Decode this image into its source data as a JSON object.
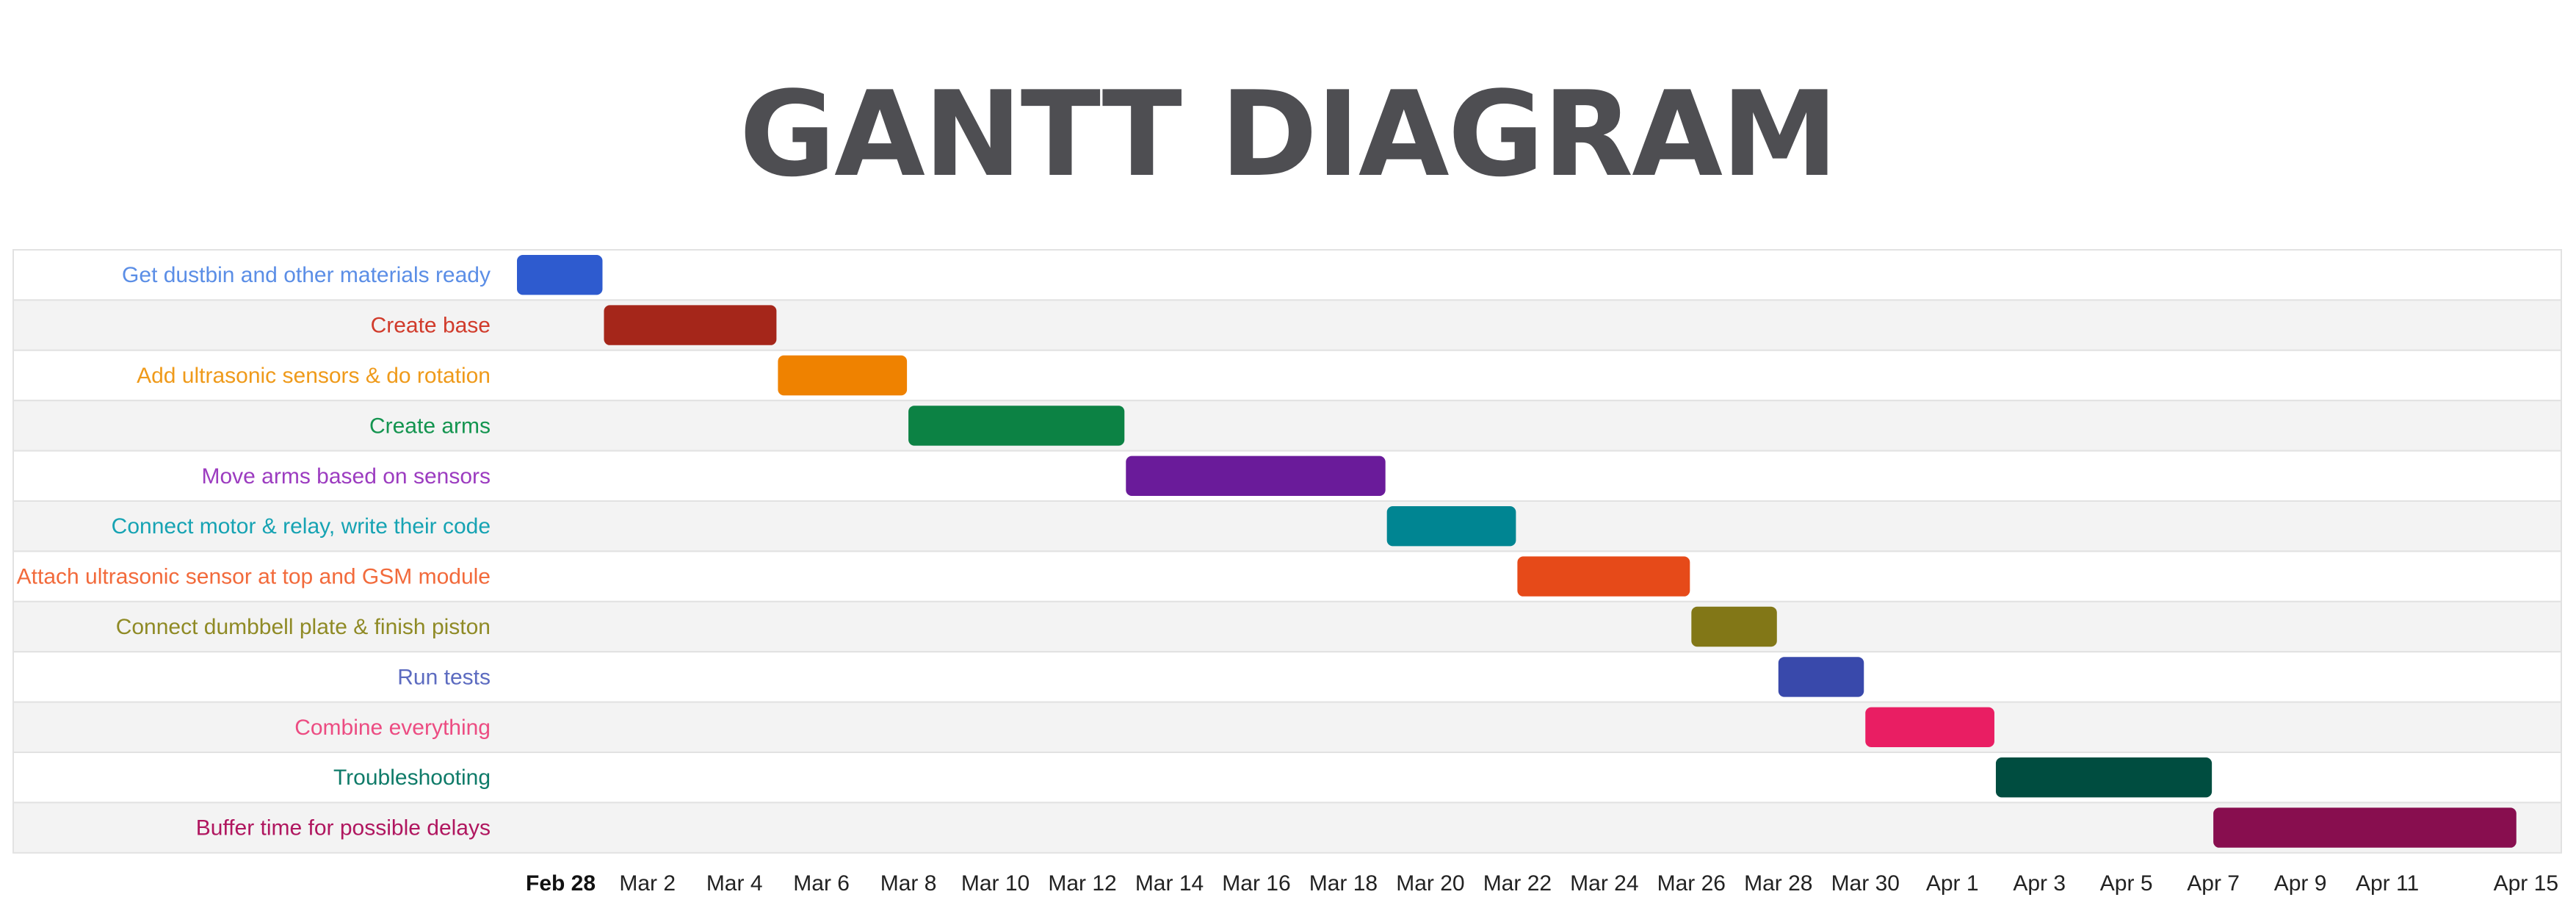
{
  "title": "GANTT DIAGRAM",
  "chart_data": {
    "type": "gantt",
    "title": "GANTT DIAGRAM",
    "x_axis": {
      "type": "date",
      "range": [
        "2024-02-28",
        "2024-04-15"
      ],
      "ticks": [
        {
          "date": "2024-02-28",
          "label": "Feb 28",
          "bold": true
        },
        {
          "date": "2024-03-02",
          "label": "Mar 2"
        },
        {
          "date": "2024-03-04",
          "label": "Mar 4"
        },
        {
          "date": "2024-03-06",
          "label": "Mar 6"
        },
        {
          "date": "2024-03-08",
          "label": "Mar 8"
        },
        {
          "date": "2024-03-10",
          "label": "Mar 10"
        },
        {
          "date": "2024-03-12",
          "label": "Mar 12"
        },
        {
          "date": "2024-03-14",
          "label": "Mar 14"
        },
        {
          "date": "2024-03-16",
          "label": "Mar 16"
        },
        {
          "date": "2024-03-18",
          "label": "Mar 18"
        },
        {
          "date": "2024-03-20",
          "label": "Mar 20"
        },
        {
          "date": "2024-03-22",
          "label": "Mar 22"
        },
        {
          "date": "2024-03-24",
          "label": "Mar 24"
        },
        {
          "date": "2024-03-26",
          "label": "Mar 26"
        },
        {
          "date": "2024-03-28",
          "label": "Mar 28"
        },
        {
          "date": "2024-03-30",
          "label": "Mar 30"
        },
        {
          "date": "2024-04-01",
          "label": "Apr 1"
        },
        {
          "date": "2024-04-03",
          "label": "Apr 3"
        },
        {
          "date": "2024-04-05",
          "label": "Apr 5"
        },
        {
          "date": "2024-04-07",
          "label": "Apr 7"
        },
        {
          "date": "2024-04-09",
          "label": "Apr 9"
        },
        {
          "date": "2024-04-11",
          "label": "Apr 11"
        },
        {
          "date": "2024-04-15",
          "label": "Apr 15"
        }
      ]
    },
    "row_shading": [
      "#ffffff",
      "#f3f3f3"
    ],
    "tasks": [
      {
        "name": "Get dustbin and other materials ready",
        "start": "2024-02-28",
        "end": "2024-03-01",
        "color": "#2e5bcf",
        "label_color": "#5b8ee6"
      },
      {
        "name": "Create base",
        "start": "2024-03-01",
        "end": "2024-03-05",
        "color": "#a5261a",
        "label_color": "#d13b2b"
      },
      {
        "name": "Add ultrasonic sensors & do rotation",
        "start": "2024-03-05",
        "end": "2024-03-08",
        "color": "#ef8200",
        "label_color": "#ef9a1a"
      },
      {
        "name": "Create arms",
        "start": "2024-03-08",
        "end": "2024-03-13",
        "color": "#0c8244",
        "label_color": "#13944f"
      },
      {
        "name": "Move arms based on sensors",
        "start": "2024-03-13",
        "end": "2024-03-19",
        "color": "#6a1b9a",
        "label_color": "#9c3cc0"
      },
      {
        "name": "Connect motor & relay, write their code",
        "start": "2024-03-19",
        "end": "2024-03-22",
        "color": "#008592",
        "label_color": "#16a3b3"
      },
      {
        "name": "Attach ultrasonic sensor at top and GSM module",
        "start": "2024-03-22",
        "end": "2024-03-26",
        "color": "#e64a19",
        "label_color": "#f26a3b"
      },
      {
        "name": "Connect dumbbell plate & finish piston",
        "start": "2024-03-26",
        "end": "2024-03-28",
        "color": "#827717",
        "label_color": "#8f8a25"
      },
      {
        "name": "Run tests",
        "start": "2024-03-28",
        "end": "2024-03-30",
        "color": "#3949ab",
        "label_color": "#5c6bc0"
      },
      {
        "name": "Combine everything",
        "start": "2024-03-30",
        "end": "2024-04-02",
        "color": "#e91e63",
        "label_color": "#ec4c82"
      },
      {
        "name": "Troubleshooting",
        "start": "2024-04-02",
        "end": "2024-04-07",
        "color": "#004d40",
        "label_color": "#0f7b69"
      },
      {
        "name": "Buffer time for possible delays",
        "start": "2024-04-07",
        "end": "2024-04-14",
        "color": "#880e4f",
        "label_color": "#b0165f"
      }
    ]
  }
}
